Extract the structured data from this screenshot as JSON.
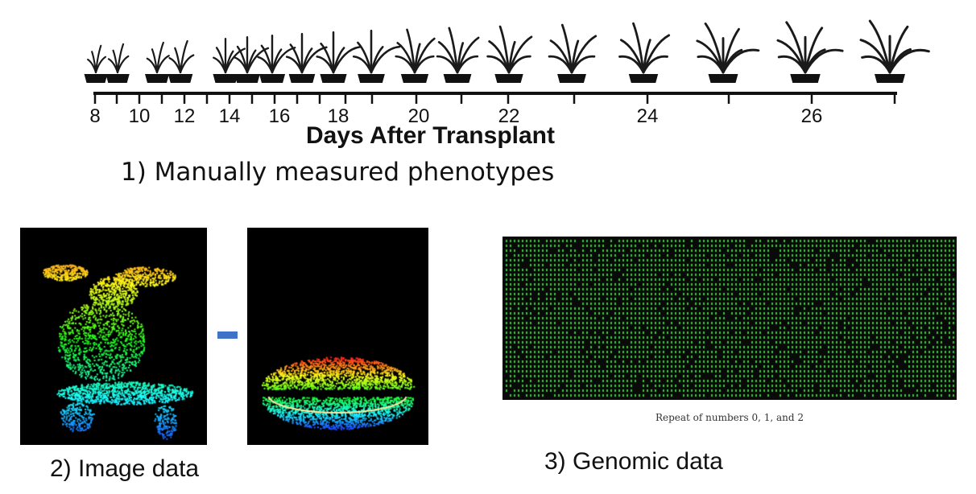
{
  "timeline": {
    "axis_title": "Days After Transplant",
    "tick_labels": [
      "8",
      "10",
      "12",
      "14",
      "16",
      "18",
      "20",
      "22",
      "24",
      "26"
    ],
    "plant_icon": "potted-plant-icon"
  },
  "sections": {
    "manual_caption": "1)    Manually measured phenotypes",
    "image_caption": "2) Image data",
    "genomic_caption": "3) Genomic data",
    "genomic_note": "Repeat of numbers 0, 1, and 2"
  },
  "colors": {
    "minus_sign": "#3f73c8",
    "genomic_grid": "#3fbf3f",
    "point_cloud_top": "#ff3a1a",
    "point_cloud_bottom": "#1e6bff"
  },
  "icons": {
    "operator": "minus-icon"
  }
}
